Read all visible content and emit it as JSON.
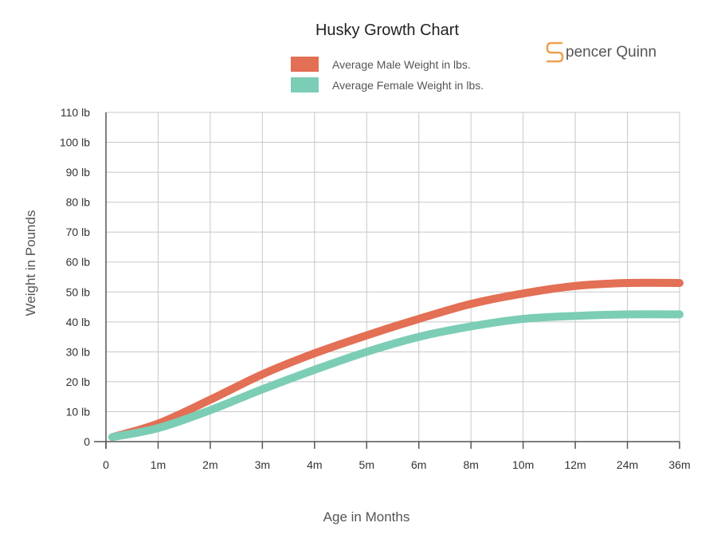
{
  "brand": {
    "name": "pencer Quinn",
    "logo_letter": "S",
    "logo_color": "#f0a050"
  },
  "chart_data": {
    "type": "line",
    "title": "Husky Growth Chart",
    "xlabel": "Age in Months",
    "ylabel": "Weight in Pounds",
    "categories": [
      "0",
      "1m",
      "2m",
      "3m",
      "4m",
      "5m",
      "6m",
      "8m",
      "10m",
      "12m",
      "24m",
      "36m"
    ],
    "ylim": [
      0,
      110
    ],
    "yticks": [
      {
        "value": 0,
        "label": "0"
      },
      {
        "value": 10,
        "label": "10 lb"
      },
      {
        "value": 20,
        "label": "20 lb"
      },
      {
        "value": 30,
        "label": "30 lb"
      },
      {
        "value": 40,
        "label": "40 lb"
      },
      {
        "value": 50,
        "label": "50 lb"
      },
      {
        "value": 60,
        "label": "60 lb"
      },
      {
        "value": 70,
        "label": "70 lb"
      },
      {
        "value": 80,
        "label": "80 lb"
      },
      {
        "value": 90,
        "label": "90 lb"
      },
      {
        "value": 100,
        "label": "100 lb"
      },
      {
        "value": 110,
        "label": "110 lb"
      }
    ],
    "grid": true,
    "legend_position": "top-center",
    "series": [
      {
        "name": "Average Male Weight in lbs.",
        "color": "#e36f55",
        "values": [
          1.5,
          6,
          14,
          22.5,
          29.5,
          35.5,
          41,
          46,
          49.5,
          52,
          53,
          53
        ]
      },
      {
        "name": "Average Female Weight in lbs.",
        "color": "#7ccdb5",
        "values": [
          1.5,
          4.5,
          10.5,
          17.5,
          24,
          30,
          35,
          38.5,
          41,
          42,
          42.5,
          42.5
        ]
      }
    ]
  }
}
